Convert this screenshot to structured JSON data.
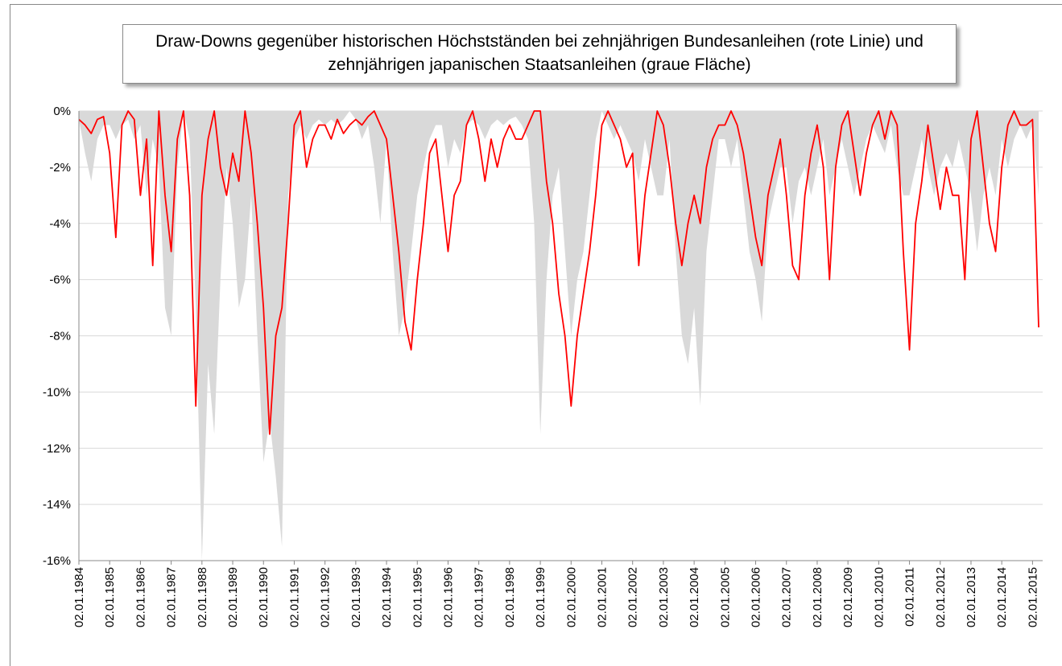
{
  "chart_data": {
    "type": "line",
    "title": "Draw-Downs gegenüber historischen Höchstständen bei zehnjährigen Bundesanleihen (rote Linie) und zehnjährigen japanischen Staatsanleihen (graue Fläche)",
    "x": [
      1984,
      1984.2,
      1984.4,
      1984.6,
      1984.8,
      1985,
      1985.2,
      1985.4,
      1985.6,
      1985.8,
      1986,
      1986.2,
      1986.4,
      1986.6,
      1986.8,
      1987,
      1987.2,
      1987.4,
      1987.6,
      1987.8,
      1988,
      1988.2,
      1988.4,
      1988.6,
      1988.8,
      1989,
      1989.2,
      1989.4,
      1989.6,
      1989.8,
      1990,
      1990.2,
      1990.4,
      1990.6,
      1990.8,
      1991,
      1991.2,
      1991.4,
      1991.6,
      1991.8,
      1992,
      1992.2,
      1992.4,
      1992.6,
      1992.8,
      1993,
      1993.2,
      1993.4,
      1993.6,
      1993.8,
      1994,
      1994.2,
      1994.4,
      1994.6,
      1994.8,
      1995,
      1995.2,
      1995.4,
      1995.6,
      1995.8,
      1996,
      1996.2,
      1996.4,
      1996.6,
      1996.8,
      1997,
      1997.2,
      1997.4,
      1997.6,
      1997.8,
      1998,
      1998.2,
      1998.4,
      1998.6,
      1998.8,
      1999,
      1999.2,
      1999.4,
      1999.6,
      1999.8,
      2000,
      2000.2,
      2000.4,
      2000.6,
      2000.8,
      2001,
      2001.2,
      2001.4,
      2001.6,
      2001.8,
      2002,
      2002.2,
      2002.4,
      2002.6,
      2002.8,
      2003,
      2003.2,
      2003.4,
      2003.6,
      2003.8,
      2004,
      2004.2,
      2004.4,
      2004.6,
      2004.8,
      2005,
      2005.2,
      2005.4,
      2005.6,
      2005.8,
      2006,
      2006.2,
      2006.4,
      2006.6,
      2006.8,
      2007,
      2007.2,
      2007.4,
      2007.6,
      2007.8,
      2008,
      2008.2,
      2008.4,
      2008.6,
      2008.8,
      2009,
      2009.2,
      2009.4,
      2009.6,
      2009.8,
      2010,
      2010.2,
      2010.4,
      2010.6,
      2010.8,
      2011,
      2011.2,
      2011.4,
      2011.6,
      2011.8,
      2012,
      2012.2,
      2012.4,
      2012.6,
      2012.8,
      2013,
      2013.2,
      2013.4,
      2013.6,
      2013.8,
      2014,
      2014.2,
      2014.4,
      2014.6,
      2014.8,
      2015,
      2015.2
    ],
    "series": [
      {
        "type": "area",
        "color": "#d9d9d9",
        "values": [
          -0.3,
          -1.5,
          -2.5,
          -1,
          -0.5,
          -0.5,
          -1,
          -0.5,
          -0.3,
          -1,
          -0.5,
          -3,
          -1,
          -2,
          -7,
          -8,
          -2,
          0,
          -1,
          -7,
          -16,
          -9,
          -11.5,
          -6,
          -2,
          -4,
          -7,
          -6,
          -3,
          -8,
          -12.5,
          -11,
          -13,
          -15.5,
          -3,
          -1,
          -0.5,
          -1,
          -0.5,
          -0.3,
          -0.5,
          -0.3,
          -0.5,
          -0.3,
          0,
          -0.3,
          -1,
          -0.5,
          -2,
          -4,
          -1,
          -5,
          -8,
          -7,
          -5,
          -3,
          -2,
          -1,
          -0.5,
          -0.5,
          -2,
          -1,
          -1.5,
          -0.5,
          -0.3,
          -0.5,
          -1,
          -0.5,
          -0.3,
          -0.5,
          -0.3,
          -0.2,
          -0.5,
          -1,
          -4,
          -11.5,
          -6,
          -3,
          -2,
          -5,
          -8,
          -6,
          -5,
          -3,
          -1,
          0,
          -0.5,
          -1,
          -0.5,
          -1,
          -1.5,
          -2.5,
          -1,
          -2,
          -3,
          -3,
          -1,
          -5,
          -8,
          -9,
          -7,
          -10.5,
          -5,
          -3,
          -1,
          -1,
          -2,
          -1,
          -3,
          -5,
          -6,
          -7.5,
          -4,
          -3,
          -2,
          -2,
          -4,
          -2.5,
          -2,
          -3,
          -2,
          -1,
          -3,
          -2,
          -1,
          -2,
          -3,
          -2,
          -1,
          -0.5,
          -1,
          -1.5,
          -0.5,
          -2,
          -3,
          -3,
          -2,
          -1,
          -2,
          -3,
          -2,
          -1.5,
          -2,
          -1,
          -2,
          -3,
          -5,
          -3,
          -2,
          -3,
          -1,
          -2,
          -1,
          -0.5,
          -1,
          -0.5,
          -3
        ]
      },
      {
        "type": "line",
        "color": "#ff0000",
        "values": [
          -0.3,
          -0.5,
          -0.8,
          -0.3,
          -0.2,
          -1.5,
          -4.5,
          -0.5,
          0,
          -0.3,
          -3,
          -1,
          -5.5,
          0,
          -3,
          -5,
          -1,
          0,
          -3,
          -10.5,
          -3,
          -1,
          0,
          -2,
          -3,
          -1.5,
          -2.5,
          0,
          -1.5,
          -4,
          -7,
          -11.5,
          -8,
          -7,
          -4,
          -0.5,
          0,
          -2,
          -1,
          -0.5,
          -0.5,
          -1,
          -0.3,
          -0.8,
          -0.5,
          -0.3,
          -0.5,
          -0.2,
          0,
          -0.5,
          -1,
          -3,
          -5,
          -7.5,
          -8.5,
          -6,
          -4,
          -1.5,
          -1,
          -3,
          -5,
          -3,
          -2.5,
          -0.5,
          0,
          -1,
          -2.5,
          -1,
          -2,
          -1,
          -0.5,
          -1,
          -1,
          -0.5,
          0,
          0,
          -2.5,
          -4,
          -6.5,
          -8,
          -10.5,
          -8,
          -6.5,
          -5,
          -3,
          -0.5,
          0,
          -0.5,
          -1,
          -2,
          -1.5,
          -5.5,
          -3,
          -1.5,
          0,
          -0.5,
          -2,
          -4,
          -5.5,
          -4,
          -3,
          -4,
          -2,
          -1,
          -0.5,
          -0.5,
          0,
          -0.5,
          -1.5,
          -3,
          -4.5,
          -5.5,
          -3,
          -2,
          -1,
          -3,
          -5.5,
          -6,
          -3,
          -1.5,
          -0.5,
          -2,
          -6,
          -2,
          -0.5,
          0,
          -1.5,
          -3,
          -1.5,
          -0.5,
          0,
          -1,
          0,
          -0.5,
          -5,
          -8.5,
          -4,
          -2.5,
          -0.5,
          -2,
          -3.5,
          -2,
          -3,
          -3,
          -6,
          -1,
          0,
          -2,
          -4,
          -5,
          -2,
          -0.5,
          0,
          -0.5,
          -0.5,
          -0.3,
          -7.7
        ]
      }
    ],
    "xlim": [
      1984,
      2015.33
    ],
    "xticks": [
      {
        "value": 1984,
        "label": "02.01.1984"
      },
      {
        "value": 1985,
        "label": "02.01.1985"
      },
      {
        "value": 1986,
        "label": "02.01.1986"
      },
      {
        "value": 1987,
        "label": "02.01.1987"
      },
      {
        "value": 1988,
        "label": "02.01.1988"
      },
      {
        "value": 1989,
        "label": "02.01.1989"
      },
      {
        "value": 1990,
        "label": "02.01.1990"
      },
      {
        "value": 1991,
        "label": "02.01.1991"
      },
      {
        "value": 1992,
        "label": "02.01.1992"
      },
      {
        "value": 1993,
        "label": "02.01.1993"
      },
      {
        "value": 1994,
        "label": "02.01.1994"
      },
      {
        "value": 1995,
        "label": "02.01.1995"
      },
      {
        "value": 1996,
        "label": "02.01.1996"
      },
      {
        "value": 1997,
        "label": "02.01.1997"
      },
      {
        "value": 1998,
        "label": "02.01.1998"
      },
      {
        "value": 1999,
        "label": "02.01.1999"
      },
      {
        "value": 2000,
        "label": "02.01.2000"
      },
      {
        "value": 2001,
        "label": "02.01.2001"
      },
      {
        "value": 2002,
        "label": "02.01.2002"
      },
      {
        "value": 2003,
        "label": "02.01.2003"
      },
      {
        "value": 2004,
        "label": "02.01.2004"
      },
      {
        "value": 2005,
        "label": "02.01.2005"
      },
      {
        "value": 2006,
        "label": "02.01.2006"
      },
      {
        "value": 2007,
        "label": "02.01.2007"
      },
      {
        "value": 2008,
        "label": "02.01.2008"
      },
      {
        "value": 2009,
        "label": "02.01.2009"
      },
      {
        "value": 2010,
        "label": "02.01.2010"
      },
      {
        "value": 2011,
        "label": "02.01.2011"
      },
      {
        "value": 2012,
        "label": "02.01.2012"
      },
      {
        "value": 2013,
        "label": "02.01.2013"
      },
      {
        "value": 2014,
        "label": "02.01.2014"
      },
      {
        "value": 2015,
        "label": "02.01.2015"
      }
    ],
    "ylim": [
      -16,
      0
    ],
    "yticks": [
      {
        "value": 0,
        "label": "0%"
      },
      {
        "value": -2,
        "label": "-2%"
      },
      {
        "value": -4,
        "label": "-4%"
      },
      {
        "value": -6,
        "label": "-6%"
      },
      {
        "value": -8,
        "label": "-8%"
      },
      {
        "value": -10,
        "label": "-10%"
      },
      {
        "value": -12,
        "label": "-12%"
      },
      {
        "value": -14,
        "label": "-14%"
      },
      {
        "value": -16,
        "label": "-16%"
      }
    ],
    "grid": true
  }
}
